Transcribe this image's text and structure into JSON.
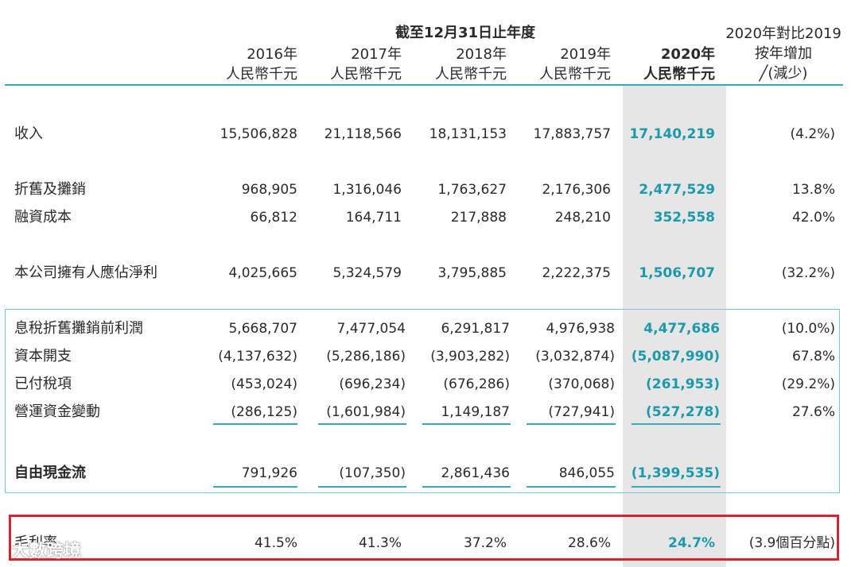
{
  "header": {
    "period_title": "截至12月31日止年度",
    "unit": "人民幣千元",
    "years": [
      "2016年",
      "2017年",
      "2018年",
      "2019年",
      "2020年"
    ],
    "change_line1": "2020年對比2019",
    "change_line2": "按年增加",
    "change_line3": "╱(減少)"
  },
  "rows": [
    {
      "label": "收入",
      "values": [
        "15,506,828",
        "21,118,566",
        "18,131,153",
        "17,883,757",
        "17,140,219"
      ],
      "change": "(4.2%)"
    },
    {
      "label": "折舊及攤銷",
      "values": [
        "968,905",
        "1,316,046",
        "1,763,627",
        "2,176,306",
        "2,477,529"
      ],
      "change": "13.8%"
    },
    {
      "label": "融資成本",
      "values": [
        "66,812",
        "164,711",
        "217,888",
        "248,210",
        "352,558"
      ],
      "change": "42.0%"
    },
    {
      "label": "本公司擁有人應佔淨利",
      "values": [
        "4,025,665",
        "5,324,579",
        "3,795,885",
        "2,222,375",
        "1,506,707"
      ],
      "change": "(32.2%)"
    },
    {
      "label": "息稅折舊攤銷前利潤",
      "values": [
        "5,668,707",
        "7,477,054",
        "6,291,817",
        "4,976,938",
        "4,477,686"
      ],
      "change": "(10.0%)"
    },
    {
      "label": "資本開支",
      "values": [
        "(4,137,632)",
        "(5,286,186)",
        "(3,903,282)",
        "(3,032,874)",
        "(5,087,990)"
      ],
      "change": "67.8%"
    },
    {
      "label": "已付稅項",
      "values": [
        "(453,024)",
        "(696,234)",
        "(676,286)",
        "(370,068)",
        "(261,953)"
      ],
      "change": "(29.2%)"
    },
    {
      "label": "營運資金變動",
      "values": [
        "(286,125)",
        "(1,601,984)",
        "1,149,187",
        "(727,941)",
        "(527,278)"
      ],
      "change": "27.6%"
    },
    {
      "label": "自由現金流",
      "values": [
        "791,926",
        "(107,350)",
        "2,861,436",
        "846,055",
        "(1,399,535)"
      ],
      "change": ""
    },
    {
      "label": "毛利率",
      "values": [
        "41.5%",
        "41.3%",
        "37.2%",
        "28.6%",
        "24.7%"
      ],
      "change": "(3.9個百分點)"
    }
  ],
  "watermark": "大數跨境",
  "colors": {
    "accent": "#1a9aab",
    "rule": "#3aa9b8",
    "highlight_bg": "#e6e6e6",
    "red_box": "#d42430"
  }
}
